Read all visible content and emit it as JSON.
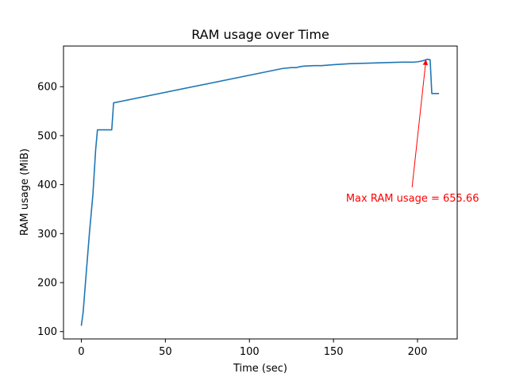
{
  "chart_data": {
    "type": "line",
    "title": "RAM usage over Time",
    "xlabel": "Time (sec)",
    "ylabel": "RAM usage (MiB)",
    "xlim": [
      -10.6,
      223.6
    ],
    "ylim": [
      85.0,
      683.0
    ],
    "xticks": [
      0,
      50,
      100,
      150,
      200
    ],
    "yticks": [
      100,
      200,
      300,
      400,
      500,
      600
    ],
    "grid": false,
    "series": [
      {
        "color": "#1f77b4",
        "x": [
          0,
          1.1,
          2.7,
          4.8,
          6.9,
          8.5,
          9.6,
          18.1,
          19.2,
          119.5,
          124.8,
          128.0,
          130.2,
          132.3,
          138.6,
          142.9,
          150.4,
          160.0,
          170.7,
          180.3,
          190.9,
          197.3,
          200.5,
          203.2,
          205.9,
          207.5,
          208.5,
          212.8
        ],
        "y": [
          112,
          140,
          210,
          300,
          380,
          470,
          512,
          512,
          567,
          637,
          639,
          639,
          641,
          642,
          643,
          643,
          645,
          647,
          648,
          649,
          650,
          650,
          651,
          653,
          656,
          655,
          586,
          586
        ]
      }
    ],
    "annotation": {
      "text": "Max RAM usage = 655.66",
      "color": "#ff0000",
      "point": [
        205,
        655.66
      ],
      "text_anchor": [
        197,
        372
      ]
    }
  }
}
